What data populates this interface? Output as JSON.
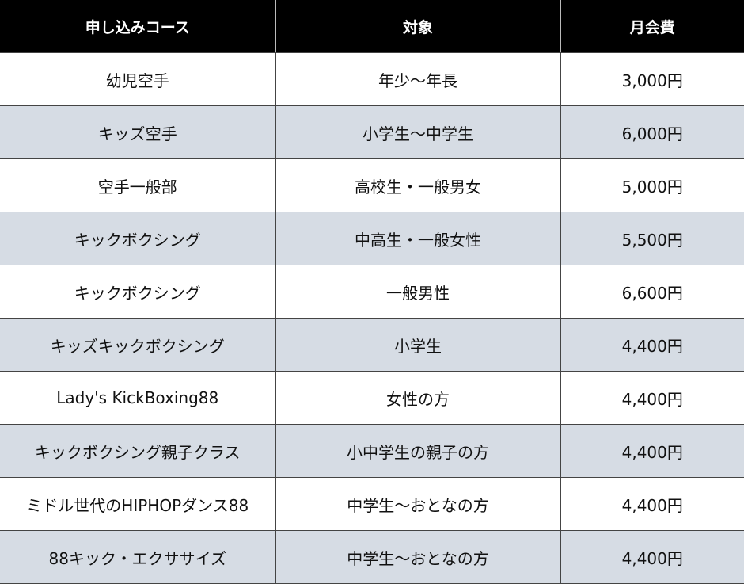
{
  "headers": [
    "申し込みコース",
    "対象",
    "月会費"
  ],
  "rows": [
    [
      "幼児空手",
      "年少～年長",
      "3,000円"
    ],
    [
      "キッズ空手",
      "小学生～中学生",
      "6,000円"
    ],
    [
      "空手一般部",
      "高校生・一般男女",
      "5,000円"
    ],
    [
      "キックボクシング",
      "中高生・一般女性",
      "5,500円"
    ],
    [
      "キックボクシング",
      "一般男性",
      "6,600円"
    ],
    [
      "キッズキックボクシング",
      "小学生",
      "4,400円"
    ],
    [
      "Lady's KickBoxing88",
      "女性の方",
      "4,400円"
    ],
    [
      "キックボクシング親子クラス",
      "小中学生の親子の方",
      "4,400円"
    ],
    [
      "ミドル世代のHIPHOPダンス88",
      "中学生～おとなの方",
      "4,400円"
    ],
    [
      "88キック・エクササイズ",
      "中学生～おとなの方",
      "4,400円"
    ]
  ],
  "colors": {
    "header_bg": "#000000",
    "header_text": "#ffffff",
    "alt_row": "#d6dce4",
    "border": "#444444"
  }
}
